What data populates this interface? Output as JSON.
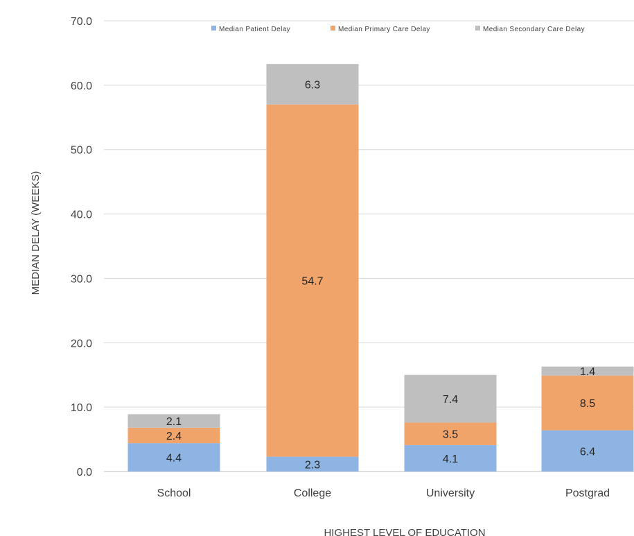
{
  "chart_data": {
    "type": "bar",
    "stacked": true,
    "categories": [
      "School",
      "College",
      "University",
      "Postgrad"
    ],
    "series": [
      {
        "name": "Median Patient Delay",
        "color": "#8db4e2",
        "values": [
          4.4,
          2.3,
          4.1,
          6.4
        ]
      },
      {
        "name": "Median Primary Care Delay",
        "color": "#f0a469",
        "values": [
          2.4,
          54.7,
          3.5,
          8.5
        ]
      },
      {
        "name": "Median Secondary Care Delay",
        "color": "#bfbfbf",
        "values": [
          2.1,
          6.3,
          7.4,
          1.4
        ]
      }
    ],
    "title": "",
    "xlabel": "HIGHEST LEVEL OF EDUCATION",
    "ylabel": "MEDIAN DELAY (WEEKS)",
    "ylim": [
      0,
      70
    ],
    "yticks": [
      "0.0",
      "10.0",
      "20.0",
      "30.0",
      "40.0",
      "50.0",
      "60.0",
      "70.0"
    ],
    "grid": true,
    "legend_position": "top"
  }
}
